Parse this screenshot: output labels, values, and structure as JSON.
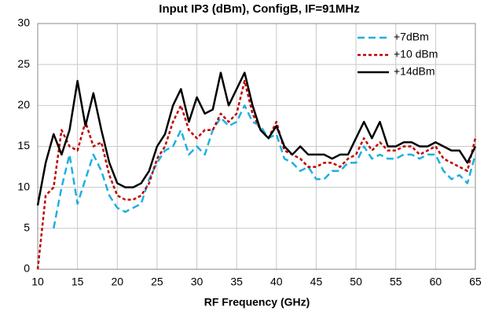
{
  "chart_data": {
    "type": "line",
    "title": "Input IP3 (dBm), ConfigB, IF=91MHz",
    "x_label": "RF Frequency (GHz)",
    "x": [
      10,
      11,
      12,
      13,
      14,
      15,
      16,
      17,
      18,
      19,
      20,
      21,
      22,
      23,
      24,
      25,
      26,
      27,
      28,
      29,
      30,
      31,
      32,
      33,
      34,
      35,
      36,
      37,
      38,
      39,
      40,
      41,
      42,
      43,
      44,
      45,
      46,
      47,
      48,
      49,
      50,
      51,
      52,
      53,
      54,
      55,
      56,
      57,
      58,
      59,
      60,
      61,
      62,
      63,
      64,
      65
    ],
    "series": [
      {
        "name": "+7dBm",
        "color": "#1fb0e0",
        "style": "dashed",
        "values": [
          null,
          null,
          5,
          10,
          14,
          8,
          11,
          14,
          12,
          9,
          7.5,
          7,
          7.5,
          8,
          11,
          13,
          14.5,
          15,
          17,
          14,
          15,
          14,
          17,
          18.5,
          17.5,
          18,
          20,
          18,
          17.5,
          16,
          16.5,
          13.5,
          13,
          12,
          12.5,
          11,
          11,
          12,
          12,
          13,
          13,
          15,
          13.5,
          14,
          13.5,
          13.5,
          14,
          14,
          13.5,
          14,
          14,
          12,
          11,
          11.5,
          10.5,
          14
        ]
      },
      {
        "name": "+10 dBm",
        "color": "#c00000",
        "style": "dotted",
        "values": [
          0,
          9,
          10,
          17,
          15,
          14.5,
          18,
          15,
          15.5,
          11.5,
          9,
          8.5,
          8.5,
          9,
          10.5,
          13.5,
          15,
          18,
          20,
          17,
          16,
          17,
          17,
          19,
          18,
          19,
          23,
          19,
          17,
          16,
          18,
          14.5,
          14,
          13.5,
          12.5,
          12.5,
          13,
          13,
          12.5,
          13.5,
          14,
          16,
          14.5,
          15.5,
          14.5,
          14.5,
          15,
          15,
          14,
          14.5,
          15,
          13.5,
          13,
          12.5,
          12,
          16
        ]
      },
      {
        "name": "+14dBm",
        "color": "#000000",
        "style": "solid",
        "values": [
          7.8,
          13,
          16.5,
          14,
          17,
          23,
          17.5,
          21.5,
          17,
          13,
          10.5,
          10,
          10,
          10.5,
          12,
          15,
          16.5,
          20,
          22,
          18,
          21,
          19,
          19.5,
          24,
          20,
          22,
          24,
          20,
          17,
          16,
          17.5,
          15,
          14,
          15,
          14,
          14,
          14,
          13.5,
          14,
          14,
          16,
          18,
          16,
          18,
          15,
          15,
          15.5,
          15.5,
          15,
          15,
          15.5,
          15,
          14.5,
          14.5,
          13,
          15
        ]
      }
    ],
    "xlim": [
      10,
      65
    ],
    "xticks": [
      10,
      15,
      20,
      25,
      30,
      35,
      40,
      45,
      50,
      55,
      60,
      65
    ],
    "ylim": [
      0,
      30
    ],
    "yticks": [
      0,
      5,
      10,
      15,
      20,
      25,
      30
    ],
    "grid": true,
    "legend": "upper right"
  }
}
